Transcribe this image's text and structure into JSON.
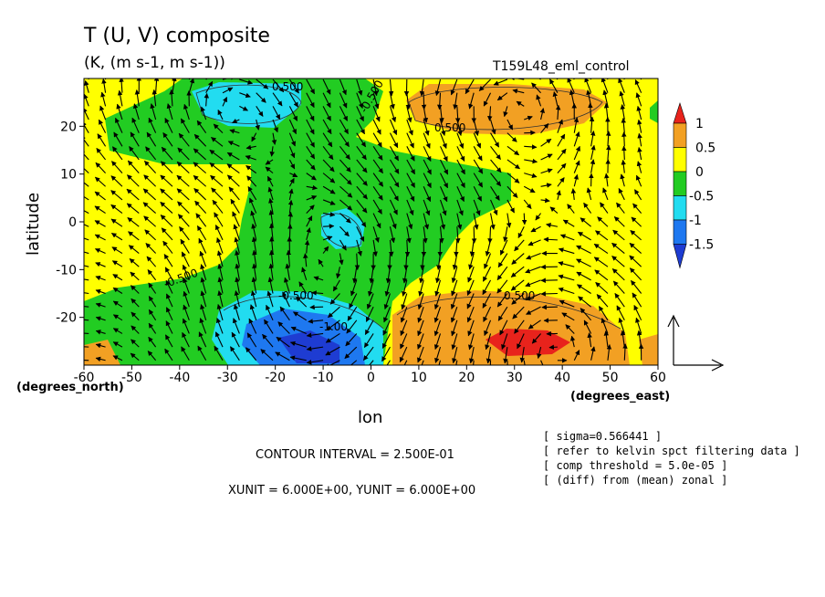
{
  "chart_data": {
    "type": "heatmap",
    "title": "T (U, V) composite",
    "units": "(K, (m s-1, m s-1))",
    "experiment": "T159L48_eml_control",
    "xlabel": "lon",
    "ylabel": "latitude",
    "x_unit_label": "(degrees_east)",
    "y_unit_label": "(degrees_north)",
    "xlim": [
      -60,
      60
    ],
    "ylim": [
      -30,
      30
    ],
    "x_ticks": [
      "-60",
      "-50",
      "-40",
      "-30",
      "-20",
      "-10",
      "0",
      "10",
      "20",
      "30",
      "40",
      "50",
      "60"
    ],
    "y_ticks": [
      "-20",
      "-10",
      "0",
      "10",
      "20"
    ],
    "colorbar": {
      "labels": [
        "1",
        "0.5",
        "0",
        "-0.5",
        "-1",
        "-1.5"
      ],
      "colors": [
        "#e8231c",
        "#f2a023",
        "#ffff00",
        "#22cc22",
        "#22dcf0",
        "#1e78f0",
        "#1e3cd2"
      ]
    },
    "contour_labels": [
      "0.500",
      "0.500",
      "-0.500",
      "-0.500",
      "-0.500",
      "0.500",
      "-1.00"
    ],
    "fields": [
      {
        "type": "warm",
        "lon": 38,
        "lat": -25,
        "amplitude": 1.2
      },
      {
        "type": "cool",
        "lon": -12,
        "lat": -25,
        "amplitude": -1.5
      },
      {
        "type": "cool",
        "lon": -30,
        "lat": 23,
        "amplitude": -0.9
      },
      {
        "type": "cool",
        "lon": -5,
        "lat": -2,
        "amplitude": -0.7
      },
      {
        "type": "warm",
        "lon": 30,
        "lat": 25,
        "amplitude": 0.7
      }
    ],
    "vectors": {
      "reference_vector": "6.0 m s-1",
      "grid_spacing_deg": 3.5
    },
    "annotations": {
      "contour_interval": "CONTOUR INTERVAL = 2.500E-01",
      "vector_units": "XUNIT = 6.000E+00, YUNIT = 6.000E+00",
      "notes": [
        "[ sigma=0.566441 ]",
        "[ refer to kelvin spct filtering data ]",
        "[ comp threshold = 5.0e-05 ]",
        "[ (diff) from (mean) zonal ]"
      ]
    }
  }
}
